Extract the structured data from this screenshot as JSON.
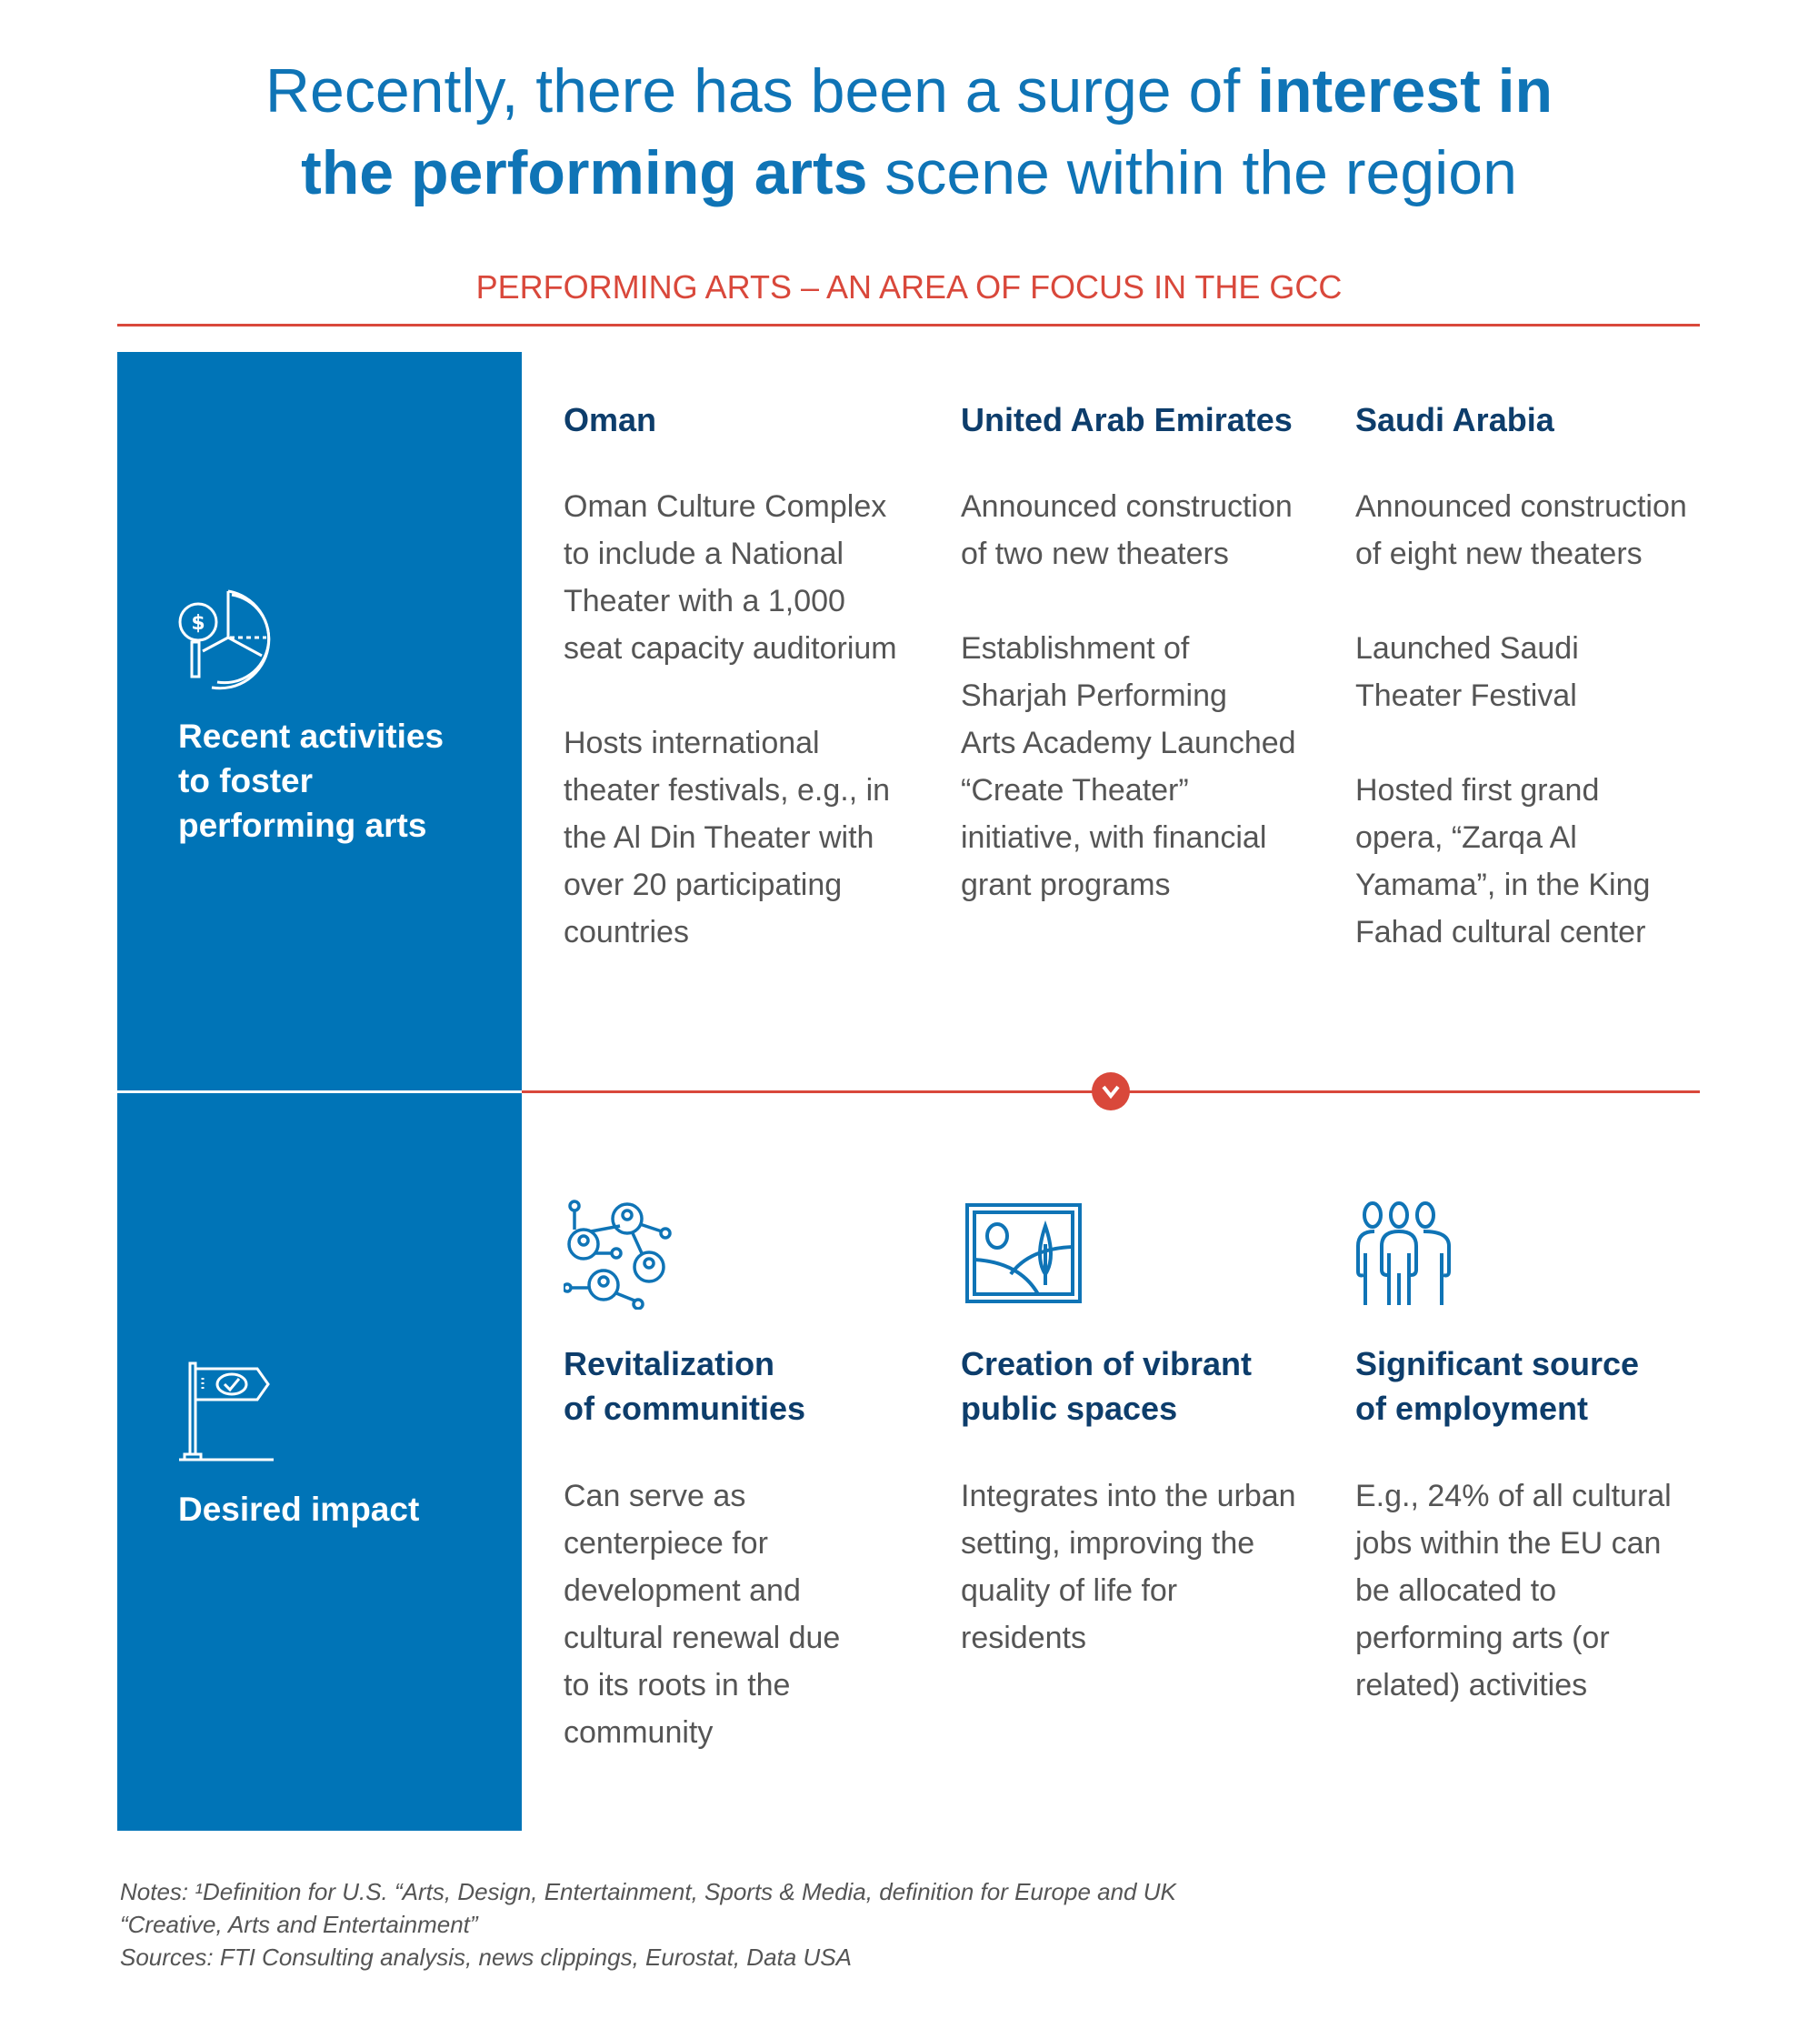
{
  "title": {
    "part1": "Recently, there has been a surge of ",
    "bold1": "interest in",
    "bold2": "the performing arts",
    "part2": " scene within the region"
  },
  "subtitle": "PERFORMING ARTS – AN AREA OF FOCUS IN THE GCC",
  "colors": {
    "brand_blue": "#0074b7",
    "heading_navy": "#0d3d6b",
    "accent_red": "#d9483b"
  },
  "left_panel": {
    "top_label": "Recent activities\nto foster\nperforming arts",
    "top_icon": "pie-chart-dollar-magnifier-icon",
    "bottom_label": "Desired impact",
    "bottom_icon": "flag-check-icon"
  },
  "countries": [
    {
      "name": "Oman",
      "items": [
        "Oman Culture Complex\nto include a National\nTheater with a 1,000\nseat capacity auditorium",
        "Hosts international\ntheater festivals, e.g., in\nthe Al Din Theater with\nover 20 participating\ncountries"
      ]
    },
    {
      "name": "United Arab Emirates",
      "items": [
        "Announced construction\nof two new theaters",
        "Establishment of\nSharjah Performing\nArts Academy Launched\n“Create Theater”\ninitiative, with financial\ngrant programs"
      ]
    },
    {
      "name": "Saudi Arabia",
      "items": [
        "Announced construction\nof eight new theaters",
        "Launched Saudi\nTheater Festival",
        "Hosted first grand\nopera, “Zarqa Al\nYamama”, in the King\nFahad cultural center"
      ]
    }
  ],
  "impacts": [
    {
      "icon": "community-network-icon",
      "title": "Revitalization\nof communities",
      "text": "Can serve as\ncenterpiece for\ndevelopment and\ncultural renewal due\nto its roots in the\ncommunity"
    },
    {
      "icon": "landscape-picture-icon",
      "title": "Creation of vibrant\npublic spaces",
      "text": "Integrates into the urban\nsetting, improving the\nquality of life for\nresidents"
    },
    {
      "icon": "people-group-icon",
      "title": "Significant source\nof employment",
      "text": "E.g., 24% of all cultural\njobs within the EU can\nbe allocated to\nperforming arts (or\nrelated) activities"
    }
  ],
  "notes": {
    "line1": "Notes: ¹Definition for U.S. “Arts, Design, Entertainment, Sports & Media, definition for Europe and UK “Creative, Arts and Entertainment”",
    "line2": "Sources: FTI Consulting analysis, news clippings, Eurostat, Data USA"
  }
}
